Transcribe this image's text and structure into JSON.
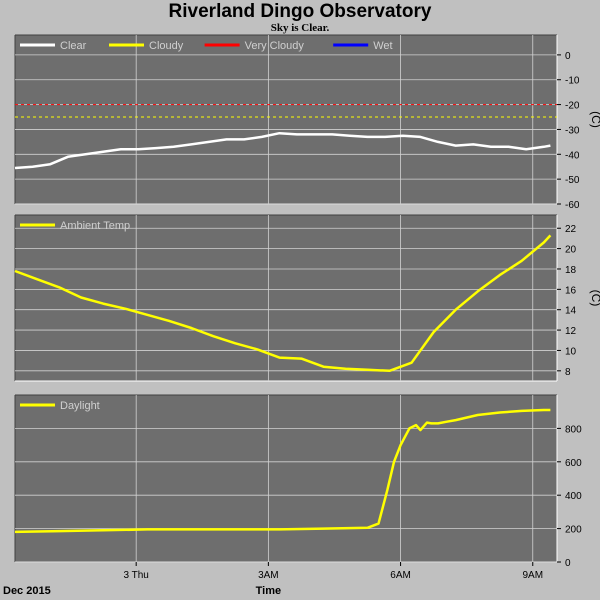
{
  "title": "Riverland Dingo Observatory",
  "subtitle": "Sky is Clear.",
  "colors": {
    "panel_bg": "#6e6e6e",
    "grid": "#d2d2d2",
    "clear": "#ffffff",
    "cloudy": "#ffff00",
    "very_cloudy": "#ff0000",
    "wet": "#0000ff",
    "ambient": "#ffff00",
    "daylight": "#ffff00"
  },
  "chart_data": [
    {
      "type": "line",
      "unit_label": "(C)",
      "ylim": [
        -60,
        8
      ],
      "yticks": [
        0,
        -10,
        -20,
        -30,
        -40,
        -50,
        -60
      ],
      "thresholds": [
        {
          "name": "Very Cloudy",
          "value": -20,
          "color": "#ff0000"
        },
        {
          "name": "Cloudy",
          "value": -25,
          "color": "#ffff00"
        }
      ],
      "legend": [
        {
          "label": "Clear",
          "color": "#ffffff"
        },
        {
          "label": "Cloudy",
          "color": "#ffff00"
        },
        {
          "label": "Very Cloudy",
          "color": "#ff0000"
        },
        {
          "label": "Wet",
          "color": "#0000ff"
        }
      ],
      "series": [
        {
          "name": "Clear",
          "color": "#ffffff",
          "x": [
            0,
            0.4,
            0.8,
            1.2,
            1.6,
            2.0,
            2.4,
            2.8,
            3.2,
            3.6,
            4.0,
            4.4,
            4.8,
            5.2,
            5.6,
            6.0,
            6.4,
            6.8,
            7.2,
            7.6,
            8.0,
            8.4,
            8.8,
            9.2,
            9.6,
            10.0,
            10.4,
            10.8,
            11.2,
            11.6,
            12.0,
            12.15
          ],
          "y": [
            -45.5,
            -45,
            -44,
            -41,
            -40,
            -39,
            -38,
            -38,
            -37.5,
            -37,
            -36,
            -35,
            -34,
            -34,
            -33,
            -31.5,
            -32,
            -32,
            -32,
            -32.5,
            -33,
            -33,
            -32.5,
            -33,
            -35,
            -36.5,
            -36,
            -37,
            -37,
            -38,
            -37,
            -36.5
          ]
        }
      ]
    },
    {
      "type": "line",
      "unit_label": "(C)",
      "ylim": [
        7,
        23.3
      ],
      "yticks": [
        8,
        10,
        12,
        14,
        16,
        18,
        20,
        22
      ],
      "legend": [
        {
          "label": "Ambient Temp",
          "color": "#ffff00"
        }
      ],
      "series": [
        {
          "name": "Ambient Temp",
          "color": "#ffff00",
          "x": [
            0,
            0.5,
            1.0,
            1.5,
            2.0,
            2.5,
            3.0,
            3.5,
            4.0,
            4.5,
            5.0,
            5.5,
            6.0,
            6.5,
            7.0,
            7.5,
            8.0,
            8.5,
            9.0,
            9.5,
            10.0,
            10.5,
            11.0,
            11.5,
            12.0,
            12.15
          ],
          "y": [
            17.8,
            17,
            16.2,
            15.2,
            14.6,
            14.1,
            13.5,
            12.9,
            12.2,
            11.4,
            10.7,
            10.1,
            9.3,
            9.2,
            8.4,
            8.2,
            8.1,
            8.0,
            8.8,
            11.8,
            14.0,
            15.8,
            17.4,
            18.8,
            20.6,
            21.3
          ]
        }
      ]
    },
    {
      "type": "line",
      "unit_label": "",
      "ylim": [
        0,
        1000
      ],
      "yticks": [
        0,
        200,
        400,
        600,
        800
      ],
      "legend": [
        {
          "label": "Daylight",
          "color": "#ffff00"
        }
      ],
      "series": [
        {
          "name": "Daylight",
          "color": "#ffff00",
          "x": [
            0,
            1.0,
            2.0,
            3.0,
            4.0,
            5.0,
            6.0,
            7.0,
            8.0,
            8.25,
            8.45,
            8.6,
            8.75,
            8.95,
            9.1,
            9.2,
            9.35,
            9.45,
            9.6,
            9.8,
            10.0,
            10.5,
            11.0,
            11.5,
            12.0,
            12.15
          ],
          "y": [
            180,
            185,
            190,
            195,
            195,
            195,
            195,
            200,
            205,
            230,
            430,
            600,
            700,
            800,
            820,
            790,
            835,
            830,
            830,
            840,
            850,
            880,
            895,
            905,
            910,
            910
          ]
        }
      ]
    }
  ],
  "x_axis": {
    "label": "Time",
    "range": [
      0,
      12.3
    ],
    "ticks": [
      {
        "value": 2.75,
        "label": "3 Thu"
      },
      {
        "value": 5.75,
        "label": "3AM"
      },
      {
        "value": 8.75,
        "label": "6AM"
      },
      {
        "value": 11.75,
        "label": "9AM"
      }
    ]
  },
  "date_label": "Dec 2015"
}
